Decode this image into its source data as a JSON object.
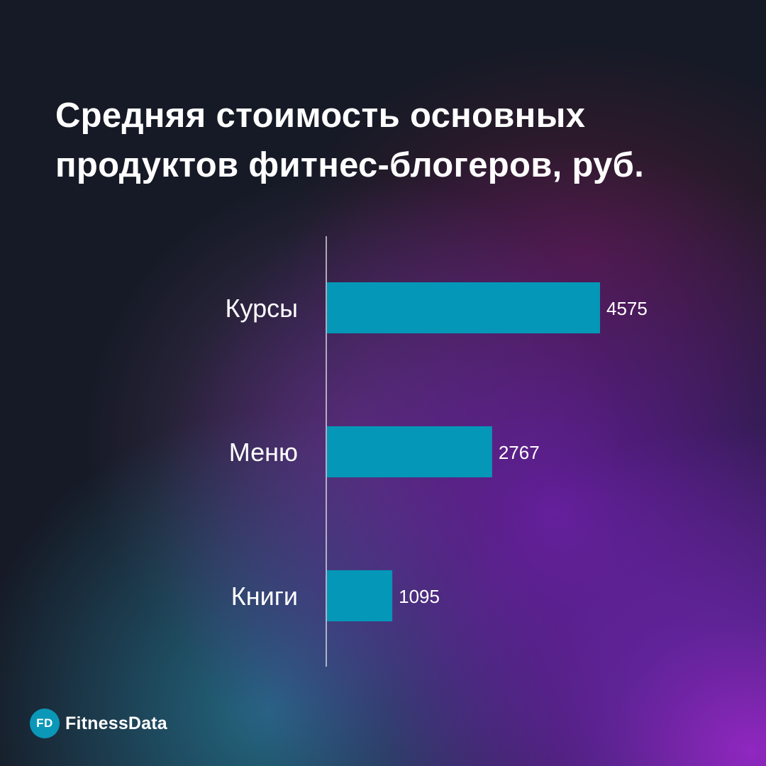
{
  "header": {
    "title_line1": "Средняя стоимость основных",
    "title_line2": "продуктов фитнес-блогеров, руб."
  },
  "brand": {
    "badge": "FD",
    "name": "FitnessData"
  },
  "colors": {
    "bar": "#0497b8",
    "text": "#ffffff",
    "axis": "#d8d8e0"
  },
  "chart_data": {
    "type": "bar",
    "orientation": "horizontal",
    "title": "Средняя стоимость основных продуктов фитнес-блогеров, руб.",
    "categories": [
      "Курсы",
      "Меню",
      "Книги"
    ],
    "values": [
      4575,
      2767,
      1095
    ],
    "data_labels": [
      "4575",
      "2767",
      "1095"
    ],
    "xlabel": "",
    "ylabel": "",
    "xlim": [
      0,
      4575
    ],
    "grid": false,
    "legend": "none"
  }
}
